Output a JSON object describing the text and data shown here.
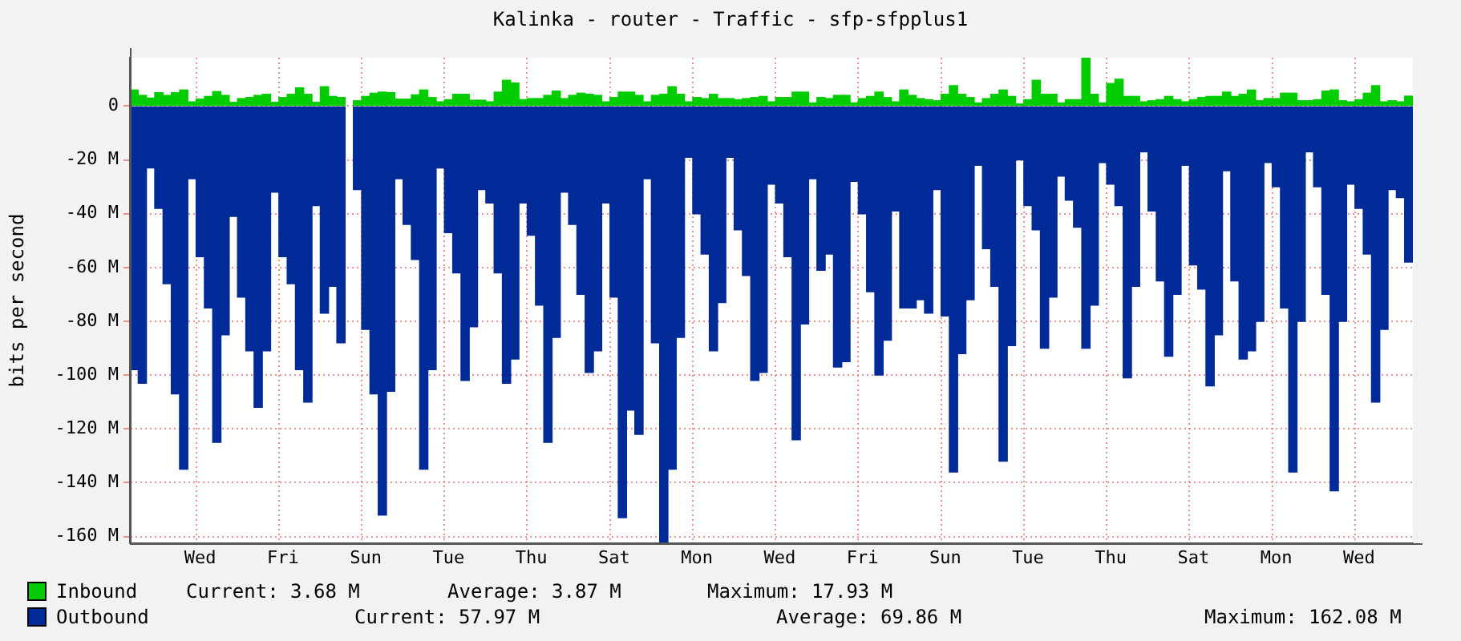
{
  "chart_data": {
    "type": "bar",
    "stacked": true,
    "title": "Kalinka - router - Traffic - sfp-sfpplus1",
    "ylabel": "bits per second",
    "categories": [
      null,
      null,
      null,
      null,
      null,
      null,
      null,
      null,
      "Wed",
      null,
      null,
      null,
      null,
      null,
      null,
      null,
      null,
      null,
      "Fri",
      null,
      null,
      null,
      null,
      null,
      null,
      null,
      null,
      null,
      "Sun",
      null,
      null,
      null,
      null,
      null,
      null,
      null,
      null,
      null,
      "Tue",
      null,
      null,
      null,
      null,
      null,
      null,
      null,
      null,
      null,
      "Thu",
      null,
      null,
      null,
      null,
      null,
      null,
      null,
      null,
      null,
      "Sat",
      null,
      null,
      null,
      null,
      null,
      null,
      null,
      null,
      null,
      "Mon",
      null,
      null,
      null,
      null,
      null,
      null,
      null,
      null,
      null,
      "Wed",
      null,
      null,
      null,
      null,
      null,
      null,
      null,
      null,
      null,
      "Fri",
      null,
      null,
      null,
      null,
      null,
      null,
      null,
      null,
      null,
      "Sun",
      null,
      null,
      null,
      null,
      null,
      null,
      null,
      null,
      null,
      "Tue",
      null,
      null,
      null,
      null,
      null,
      null,
      null,
      null,
      null,
      "Thu",
      null,
      null,
      null,
      null,
      null,
      null,
      null,
      null,
      null,
      "Sat",
      null,
      null,
      null,
      null,
      null,
      null,
      null,
      null,
      null,
      "Mon",
      null,
      null,
      null,
      null,
      null,
      null,
      null,
      null,
      null,
      "Wed",
      null,
      null,
      null,
      null,
      null,
      null
    ],
    "series": [
      {
        "name": "Inbound",
        "color": "#00cc00",
        "values": [
          6,
          4,
          3,
          5,
          4,
          5,
          6,
          1.6,
          2.6,
          3.6,
          5.4,
          4,
          1.4,
          2.8,
          3.2,
          4,
          4.4,
          1.4,
          3.2,
          4.4,
          6.8,
          4.4,
          1.4,
          7.2,
          3.6,
          3.2,
          null,
          2,
          3.6,
          4.8,
          5.2,
          5,
          2.6,
          2.6,
          4.2,
          6,
          3.2,
          1.6,
          2.4,
          4.4,
          4.4,
          2.2,
          2.2,
          1.6,
          5.2,
          9.6,
          8.6,
          2.4,
          2.8,
          2.8,
          4,
          5.6,
          2.8,
          4,
          4.8,
          4.4,
          4,
          1.6,
          3.2,
          5.2,
          5.2,
          4,
          1.6,
          4,
          4.4,
          7.2,
          4.4,
          1.6,
          3.2,
          2.8,
          4.4,
          2.8,
          2.8,
          2.4,
          2.8,
          3.2,
          3.6,
          1.6,
          3.2,
          3.2,
          5.2,
          5.2,
          1.2,
          3.2,
          2.8,
          4,
          4,
          1.2,
          2.8,
          3.6,
          5.2,
          3.2,
          1.6,
          6,
          4,
          2.8,
          2.4,
          2,
          4.4,
          7.6,
          4.4,
          3.2,
          1.2,
          2.8,
          4.4,
          6,
          3.6,
          0.8,
          2.4,
          9.6,
          4.4,
          4.4,
          1.2,
          2.4,
          2.4,
          18,
          4.4,
          1.2,
          8.4,
          10,
          3.6,
          3.6,
          1.6,
          2,
          2.4,
          3.6,
          2.4,
          1.6,
          2.4,
          3.2,
          3.6,
          3.6,
          5.2,
          3.6,
          4.4,
          6,
          2,
          2.8,
          2.8,
          4.8,
          4.8,
          2,
          2,
          2.4,
          5.6,
          6,
          2,
          1.6,
          2.4,
          4.8,
          7.6,
          1.6,
          2,
          1.6,
          3.7
        ]
      },
      {
        "name": "Outbound",
        "color": "#002a97",
        "values": [
          -98,
          -103,
          -23,
          -38,
          -66,
          -107,
          -135,
          -27,
          -56,
          -75,
          -125,
          -85,
          -41,
          -71,
          -91,
          -112,
          -91,
          -32,
          -56,
          -66,
          -98,
          -110,
          -37,
          -77,
          -67,
          -88,
          null,
          -31,
          -83,
          -107,
          -152,
          -106,
          -27,
          -44,
          -57,
          -135,
          -98,
          -23,
          -47,
          -62,
          -102,
          -82,
          -31,
          -36,
          -62,
          -103,
          -94,
          -36,
          -48,
          -74,
          -125,
          -86,
          -32,
          -44,
          -70,
          -99,
          -91,
          -36,
          -71,
          -153,
          -113,
          -122,
          -27,
          -88,
          -162,
          -135,
          -86,
          -19,
          -40,
          -55,
          -91,
          -73,
          -19,
          -46,
          -63,
          -102,
          -99,
          -29,
          -36,
          -56,
          -124,
          -81,
          -27,
          -61,
          -55,
          -97,
          -95,
          -28,
          -40,
          -69,
          -100,
          -87,
          -39,
          -75,
          -75,
          -72,
          -77,
          -31,
          -78,
          -136,
          -92,
          -72,
          -22,
          -53,
          -67,
          -132,
          -89,
          -20,
          -37,
          -46,
          -90,
          -71,
          -26,
          -35,
          -45,
          -90,
          -74,
          -21,
          -29,
          -37,
          -101,
          -67,
          -17,
          -39,
          -65,
          -93,
          -70,
          -22,
          -59,
          -68,
          -104,
          -85,
          -24,
          -65,
          -94,
          -91,
          -80,
          -21,
          -30,
          -75,
          -136,
          -80,
          -17,
          -30,
          -70,
          -143,
          -80,
          -29,
          -38,
          -55,
          -110,
          -83,
          -31,
          -34,
          -58
        ]
      }
    ],
    "ylim": [
      -162.5,
      18
    ],
    "yticks": [
      {
        "value": 0,
        "label": "0"
      },
      {
        "value": -20,
        "label": "-20 M"
      },
      {
        "value": -40,
        "label": "-40 M"
      },
      {
        "value": -60,
        "label": "-60 M"
      },
      {
        "value": -80,
        "label": "-80 M"
      },
      {
        "value": -100,
        "label": "-100 M"
      },
      {
        "value": -120,
        "label": "-120 M"
      },
      {
        "value": -140,
        "label": "-140 M"
      },
      {
        "value": -160,
        "label": "-160 M"
      }
    ],
    "grid": true,
    "legend": "bottom",
    "annotations": [
      "Current: 3.68 M",
      "Average: 3.87 M",
      "Maximum: 17.93 M",
      "Current: 57.97 M",
      "Average: 69.86 M",
      "Maximum: 162.08 M"
    ]
  }
}
